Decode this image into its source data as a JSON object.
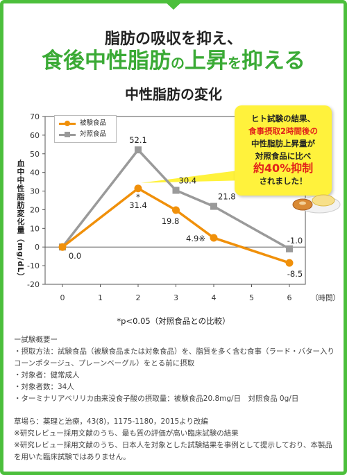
{
  "header": {
    "line1": "脂肪の吸収を抑え、",
    "line2_part1": "食後中性脂肪",
    "line2_part2": "の",
    "line2_part3": "上昇",
    "line2_part4": "を",
    "line2_part5": "抑える"
  },
  "chart_title": "中性脂肪の変化",
  "colors": {
    "frame": "#4cbf3c",
    "test": "#f0900a",
    "control": "#9a9a9a",
    "callout": "#fff23c",
    "highlight": "#e2231a"
  },
  "chart_data": {
    "type": "line",
    "x": [
      0,
      2,
      3,
      4,
      6
    ],
    "x_ticks": [
      "0",
      "1",
      "2",
      "3",
      "4",
      "5",
      "6"
    ],
    "x_unit": "（時間）",
    "ylabel": "血中中性脂肪変化量（mg/dL）",
    "ylim": [
      -20,
      70
    ],
    "y_ticks": [
      "70",
      "60",
      "50",
      "40",
      "30",
      "20",
      "10",
      "0",
      "-10",
      "-20"
    ],
    "series": [
      {
        "name": "被験食品",
        "values": [
          0,
          31.4,
          19.8,
          4.9,
          -8.5
        ],
        "labels": [
          "0.0",
          "31.4",
          "19.8",
          "4.9※",
          "-8.5"
        ]
      },
      {
        "name": "対照食品",
        "values": [
          0,
          52.1,
          30.4,
          21.8,
          -1.0
        ],
        "labels": [
          "",
          "52.1",
          "30.4",
          "21.8",
          "-1.0"
        ]
      }
    ],
    "annotation_star": "*",
    "significance_note": "*p<0.05（対照食品との比較）"
  },
  "legend": {
    "test": "被験食品",
    "control": "対照食品"
  },
  "callout": {
    "line1": "ヒト試験の結果、",
    "line2": "食事摂取2時間後の",
    "line3": "中性脂肪上昇量が",
    "line4": "対照食品に比べ",
    "line5_red": "約40%抑制",
    "line6": "されました！"
  },
  "summary": {
    "heading": "ー試験概要ー",
    "items": [
      "・摂取方法：試験食品（被験食品または対象食品）を、脂質を多く含む食事（ラード・バター入りコーンポタージュ、プレーンベーグル）をとる前に摂取",
      "・対象者：健常成人",
      "・対象者数：34人",
      "・ターミナリアベリリカ由来没食子酸の摂取量：被験食品20.8mg/日　対照食品 0g/日"
    ]
  },
  "references": [
    "草場ら：薬理と治療，43(8)，1175-1180，2015より改編",
    "※研究レビュー採用文献のうち、最も質の評価が高い臨床試験の結果",
    "※研究レビュー採用文献のうち、日本人を対象とした試験結果を事例として提示しており、本製品を用いた臨床試験ではありません。"
  ]
}
